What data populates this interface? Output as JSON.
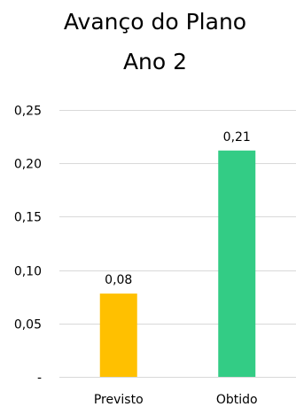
{
  "chart_data": {
    "type": "bar",
    "title": [
      "Avanço do Plano",
      "Ano 2"
    ],
    "xlabel": "",
    "ylabel": "",
    "categories": [
      "Previsto",
      "Obtido"
    ],
    "values": [
      0.078,
      0.212
    ],
    "data_labels": [
      "0,08",
      "0,21"
    ],
    "colors": [
      "#FFC000",
      "#33CC85"
    ],
    "ylim": [
      0,
      0.25
    ],
    "yticks": [
      0,
      0.05,
      0.1,
      0.15,
      0.2,
      0.25
    ],
    "ytick_labels": [
      "-",
      "0,05",
      "0,10",
      "0,15",
      "0,20",
      "0,25"
    ],
    "grid": true,
    "legend": "none"
  }
}
